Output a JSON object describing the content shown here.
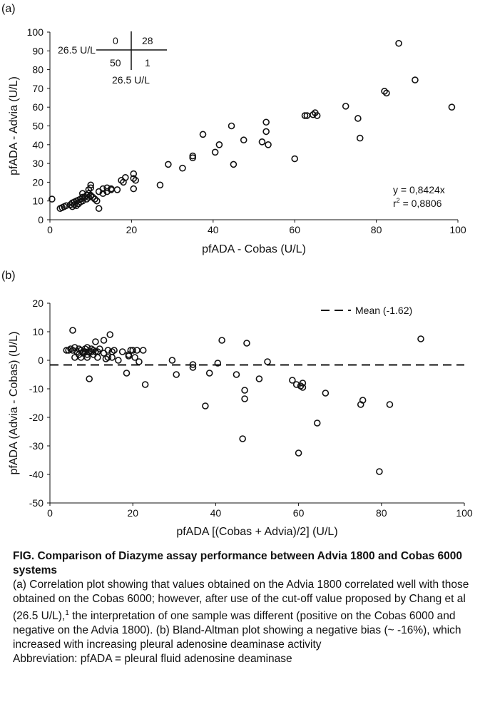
{
  "panel_a_label": "(a)",
  "panel_b_label": "(b)",
  "caption": {
    "title": "FIG.  Comparison of Diazyme assay performance between Advia 1800 and Cobas 6000 systems",
    "body_a": "(a) Correlation plot showing that values obtained on the Advia 1800 correlated well with those obtained on the Cobas 6000; however, after use of the cut-off value proposed by Chang et al (26.5 U/L),",
    "body_sup": "1",
    "body_b": " the interpretation of one sample was different (positive on the Cobas 6000 and negative on the Advia 1800). (b) Bland-Altman plot showing a negative bias (~ -16%), which increased with increasing pleural adenosine deaminase activity",
    "abbreviation": "Abbreviation: pfADA = pleural fluid adenosine deaminase"
  },
  "chart_data": [
    {
      "type": "scatter",
      "panel": "(a)",
      "xlabel": "pfADA - Cobas (U/L)",
      "ylabel": "pfADA - Advia (U/L)",
      "xlim": [
        0,
        100
      ],
      "ylim": [
        0,
        100
      ],
      "xticks": [
        0,
        20,
        40,
        60,
        80,
        100
      ],
      "yticks": [
        0,
        10,
        20,
        30,
        40,
        50,
        60,
        70,
        80,
        90,
        100
      ],
      "grid": false,
      "marker": "open-circle",
      "annotation": {
        "equation": "y = 0,8424x",
        "r2_label": "r",
        "r2_sup": "2",
        "r2_value": " = 0,8806"
      },
      "contingency": {
        "cutoff_label_y": "26.5 U/L",
        "cutoff_label_x": "26.5 U/L",
        "top_left": "0",
        "top_right": "28",
        "bottom_left": "50",
        "bottom_right": "1"
      },
      "points": [
        [
          0.5,
          11
        ],
        [
          2.5,
          6
        ],
        [
          3,
          6.5
        ],
        [
          3.5,
          7
        ],
        [
          4,
          7.5
        ],
        [
          5,
          8
        ],
        [
          5.5,
          9
        ],
        [
          5.5,
          7
        ],
        [
          6,
          9.5
        ],
        [
          6,
          8
        ],
        [
          6.5,
          10
        ],
        [
          6.5,
          7.5
        ],
        [
          7,
          8.5
        ],
        [
          7,
          10.5
        ],
        [
          7.5,
          9.5
        ],
        [
          7.5,
          11
        ],
        [
          8,
          12
        ],
        [
          8,
          14
        ],
        [
          8,
          10
        ],
        [
          8.5,
          12
        ],
        [
          9,
          11
        ],
        [
          9,
          13
        ],
        [
          9.5,
          16
        ],
        [
          9.5,
          14
        ],
        [
          9.5,
          12
        ],
        [
          10,
          17
        ],
        [
          10,
          18.5
        ],
        [
          10,
          13
        ],
        [
          10,
          12.5
        ],
        [
          10.5,
          12
        ],
        [
          11,
          11
        ],
        [
          11.5,
          10
        ],
        [
          12,
          6
        ],
        [
          12,
          15
        ],
        [
          13,
          14
        ],
        [
          13,
          16.5
        ],
        [
          14,
          17
        ],
        [
          14,
          15
        ],
        [
          15,
          16
        ],
        [
          15,
          16.5
        ],
        [
          16.5,
          16
        ],
        [
          17.5,
          21
        ],
        [
          18,
          20
        ],
        [
          18.5,
          22.5
        ],
        [
          20.5,
          24.5
        ],
        [
          20.5,
          22
        ],
        [
          20.5,
          16.5
        ],
        [
          21,
          21
        ],
        [
          27,
          18.5
        ],
        [
          29,
          29.5
        ],
        [
          32.5,
          27.5
        ],
        [
          35,
          34
        ],
        [
          35,
          33
        ],
        [
          37.5,
          45.5
        ],
        [
          40.5,
          36
        ],
        [
          41.5,
          40
        ],
        [
          44.5,
          50
        ],
        [
          45,
          29.5
        ],
        [
          47.5,
          42.5
        ],
        [
          52,
          41.5
        ],
        [
          53,
          52
        ],
        [
          53,
          47
        ],
        [
          53.5,
          40
        ],
        [
          60,
          32.5
        ],
        [
          62.5,
          55.5
        ],
        [
          63,
          55.5
        ],
        [
          64.5,
          56
        ],
        [
          65,
          57
        ],
        [
          65.5,
          55.5
        ],
        [
          72.5,
          60.5
        ],
        [
          75.5,
          54
        ],
        [
          76,
          43.5
        ],
        [
          82,
          68.5
        ],
        [
          82.5,
          67.5
        ],
        [
          85.5,
          94
        ],
        [
          89.5,
          74.5
        ],
        [
          98.5,
          60
        ]
      ]
    },
    {
      "type": "scatter",
      "panel": "(b)",
      "xlabel": "pfADA [(Cobas + Advia)/2] (U/L)",
      "ylabel": "pfADA (Advia - Cobas) (U/L)",
      "xlim": [
        0,
        100
      ],
      "ylim": [
        -50,
        20
      ],
      "xticks": [
        0,
        20,
        40,
        60,
        80,
        100
      ],
      "yticks": [
        -50,
        -40,
        -30,
        -20,
        -10,
        0,
        10,
        20
      ],
      "grid": false,
      "marker": "open-circle",
      "mean_line": {
        "y": -1.62,
        "label": "Mean (-1.62)"
      },
      "legend_position": "top-right",
      "points": [
        [
          4,
          3.5
        ],
        [
          4.5,
          3.5
        ],
        [
          5,
          4
        ],
        [
          5.5,
          3.5
        ],
        [
          5.5,
          10.5
        ],
        [
          6,
          4.5
        ],
        [
          6,
          1
        ],
        [
          6.5,
          3
        ],
        [
          7,
          2
        ],
        [
          7,
          4
        ],
        [
          7.5,
          3.5
        ],
        [
          7.5,
          1
        ],
        [
          8,
          3
        ],
        [
          8,
          2.5
        ],
        [
          8.5,
          4
        ],
        [
          8.5,
          3
        ],
        [
          9,
          4.5
        ],
        [
          9,
          2
        ],
        [
          9,
          1
        ],
        [
          9.5,
          -6.5
        ],
        [
          9.5,
          3
        ],
        [
          10,
          4
        ],
        [
          10,
          3
        ],
        [
          10.5,
          3.5
        ],
        [
          10.5,
          2
        ],
        [
          11,
          6.5
        ],
        [
          11,
          3
        ],
        [
          11.5,
          1
        ],
        [
          11.5,
          3
        ],
        [
          12,
          4
        ],
        [
          13,
          7
        ],
        [
          13,
          2.5
        ],
        [
          13.5,
          0.5
        ],
        [
          14,
          3.5
        ],
        [
          14,
          1
        ],
        [
          14.5,
          9
        ],
        [
          15,
          3
        ],
        [
          15,
          1
        ],
        [
          15.5,
          3.5
        ],
        [
          16.5,
          0
        ],
        [
          17.5,
          3
        ],
        [
          18.5,
          -4.5
        ],
        [
          19,
          1.5
        ],
        [
          19,
          2
        ],
        [
          19.5,
          3.5
        ],
        [
          20,
          3.5
        ],
        [
          20.5,
          1
        ],
        [
          21,
          3.5
        ],
        [
          21.5,
          -0.5
        ],
        [
          22.5,
          3.5
        ],
        [
          23,
          -8.5
        ],
        [
          29.5,
          0
        ],
        [
          30.5,
          -5
        ],
        [
          34.5,
          -1.5
        ],
        [
          34.5,
          -2.5
        ],
        [
          37.5,
          -16
        ],
        [
          38.5,
          -4.5
        ],
        [
          40.5,
          -1
        ],
        [
          41.5,
          7
        ],
        [
          45,
          -5
        ],
        [
          46.5,
          -27.5
        ],
        [
          47,
          -10.5
        ],
        [
          47,
          -13.5
        ],
        [
          47.5,
          6
        ],
        [
          50.5,
          -6.5
        ],
        [
          52.5,
          -0.5
        ],
        [
          58.5,
          -7
        ],
        [
          59.5,
          -8.5
        ],
        [
          60,
          -32.5
        ],
        [
          60.5,
          -9
        ],
        [
          61,
          -9.5
        ],
        [
          61,
          -8
        ],
        [
          64.5,
          -22
        ],
        [
          66.5,
          -11.5
        ],
        [
          75,
          -15.5
        ],
        [
          75.5,
          -14
        ],
        [
          79.5,
          -39
        ],
        [
          82,
          -15.5
        ],
        [
          89.5,
          7.5
        ]
      ]
    }
  ]
}
